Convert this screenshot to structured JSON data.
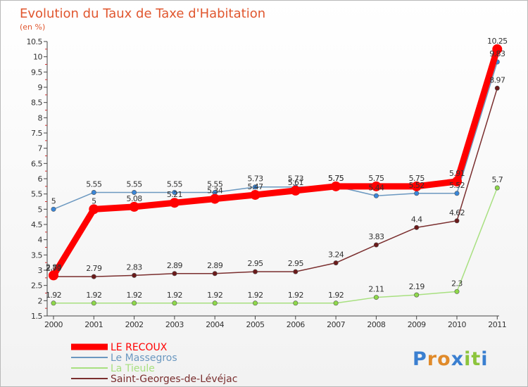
{
  "chart_data": {
    "type": "line",
    "title": "Evolution du Taux de Taxe d'Habitation",
    "subtitle": "(en %)",
    "xlabel": "",
    "ylabel": "",
    "ylim": [
      1.5,
      10.5
    ],
    "grid": false,
    "legend_position": "bottom-left",
    "categories": [
      "2000",
      "2001",
      "2002",
      "2003",
      "2004",
      "2005",
      "2006",
      "2007",
      "2008",
      "2009",
      "2010",
      "2011"
    ],
    "y_ticks": [
      "1.5",
      "2",
      "2.5",
      "3",
      "3.5",
      "4",
      "4.5",
      "5",
      "5.5",
      "6",
      "6.5",
      "7",
      "7.5",
      "8",
      "8.5",
      "9",
      "9.5",
      "10",
      "10.5"
    ],
    "series": [
      {
        "name": "Le Massegros",
        "color": "#6b98c0",
        "marker_color": "#3a86d8",
        "values": [
          5,
          5.55,
          5.55,
          5.55,
          5.55,
          5.73,
          5.73,
          5.75,
          5.44,
          5.52,
          5.52,
          9.83
        ],
        "labels": [
          "5",
          "5.55",
          "5.55",
          "5.55",
          "5.55",
          "5.73",
          "5.73",
          "5.75",
          "5.44",
          "5.52",
          "5.52",
          "9.83"
        ]
      },
      {
        "name": "La Tieule",
        "color": "#a8e080",
        "marker_color": "#8ed84a",
        "values": [
          1.92,
          1.92,
          1.92,
          1.92,
          1.92,
          1.92,
          1.92,
          1.92,
          2.11,
          2.19,
          2.3,
          5.7
        ],
        "labels": [
          "1.92",
          "1.92",
          "1.92",
          "1.92",
          "1.92",
          "1.92",
          "1.92",
          "1.92",
          "2.11",
          "2.19",
          "2.3",
          "5.7"
        ]
      },
      {
        "name": "Saint-Georges-de-Lévéjac",
        "color": "#7a2e2e",
        "marker_color": "#6b1a1a",
        "values": [
          2.79,
          2.79,
          2.83,
          2.89,
          2.89,
          2.95,
          2.95,
          3.24,
          3.83,
          4.4,
          4.62,
          8.97
        ],
        "labels": [
          "2.79",
          "2.79",
          "2.83",
          "2.89",
          "2.89",
          "2.95",
          "2.95",
          "3.24",
          "3.83",
          "4.4",
          "4.62",
          "8.97"
        ]
      },
      {
        "name": "LE RECOUX",
        "color": "#ff0000",
        "marker_color": "#ff0000",
        "values": [
          2.83,
          5,
          5.08,
          5.21,
          5.34,
          5.47,
          5.61,
          5.75,
          5.75,
          5.75,
          5.91,
          10.25
        ],
        "labels": [
          "2.83",
          "5",
          "5.08",
          "5.21",
          "5.34",
          "5.47",
          "5.61",
          "5.75",
          "5.75",
          "5.75",
          "5.91",
          "10.25"
        ]
      }
    ],
    "legend": [
      "LE RECOUX",
      "Le Massegros",
      "La Tieule",
      "Saint-Georges-de-Lévéjac"
    ]
  },
  "logo": {
    "letters": [
      "P",
      "r",
      "o",
      "x",
      "i",
      "t",
      "i"
    ],
    "colors": [
      "#3a7fd0",
      "#e08a2a",
      "#e08a2a",
      "#3a7fd0",
      "#8cc43c",
      "#8cc43c",
      "#3a7fd0"
    ]
  }
}
